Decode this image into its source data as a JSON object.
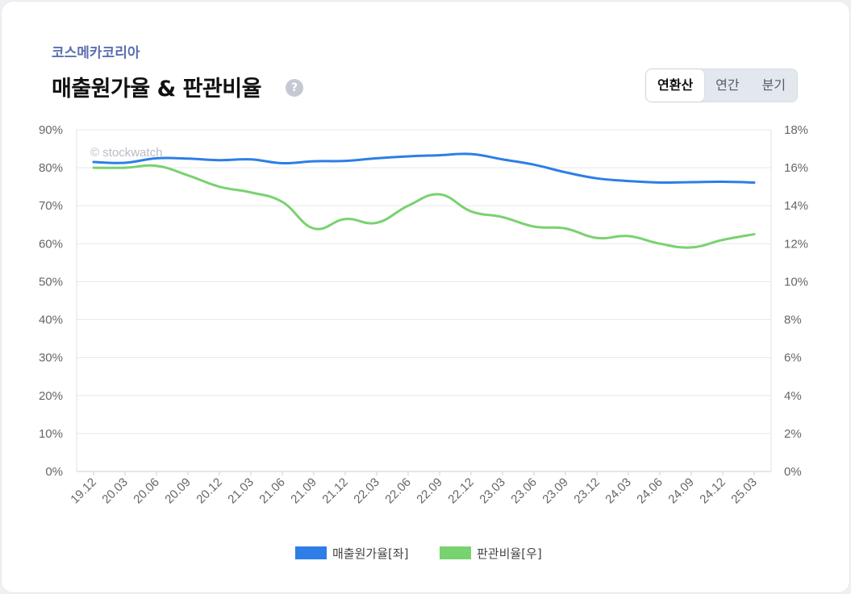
{
  "header": {
    "company": "코스메카코리아",
    "title": "매출원가율 & 판관비율",
    "help_icon": "?"
  },
  "period_toggle": {
    "options": [
      "연환산",
      "연간",
      "분기"
    ],
    "active_index": 0
  },
  "watermark": "© stockwatch",
  "colors": {
    "series1": "#2d7ee6",
    "series2": "#79d270",
    "grid": "#e8e8e8"
  },
  "chart_data": {
    "type": "line",
    "categories": [
      "19.12",
      "20.03",
      "20.06",
      "20.09",
      "20.12",
      "21.03",
      "21.06",
      "21.09",
      "21.12",
      "22.03",
      "22.06",
      "22.09",
      "22.12",
      "23.03",
      "23.06",
      "23.09",
      "23.12",
      "24.03",
      "24.06",
      "24.09",
      "24.12",
      "25.03"
    ],
    "y_left": {
      "ylim": [
        0,
        90
      ],
      "ticks": [
        "0%",
        "10%",
        "20%",
        "30%",
        "40%",
        "50%",
        "60%",
        "70%",
        "80%",
        "90%"
      ]
    },
    "y_right": {
      "ylim": [
        0,
        18
      ],
      "ticks": [
        "0%",
        "2%",
        "4%",
        "6%",
        "8%",
        "10%",
        "12%",
        "14%",
        "16%",
        "18%"
      ]
    },
    "series": [
      {
        "name": "매출원가율[좌]",
        "axis": "left",
        "values": [
          81.5,
          81.3,
          82.5,
          82.4,
          82.0,
          82.2,
          81.2,
          81.7,
          81.8,
          82.5,
          83.0,
          83.3,
          83.6,
          82.2,
          80.8,
          78.8,
          77.2,
          76.5,
          76.1,
          76.2,
          76.3,
          76.1
        ]
      },
      {
        "name": "판관비율[우]",
        "axis": "right",
        "values": [
          16.0,
          16.0,
          16.1,
          15.6,
          15.0,
          14.7,
          14.2,
          12.8,
          13.3,
          13.1,
          14.0,
          14.6,
          13.7,
          13.4,
          12.9,
          12.8,
          12.3,
          12.4,
          12.0,
          11.8,
          12.2,
          12.5
        ]
      }
    ],
    "legend_position": "bottom-center",
    "grid": true
  }
}
